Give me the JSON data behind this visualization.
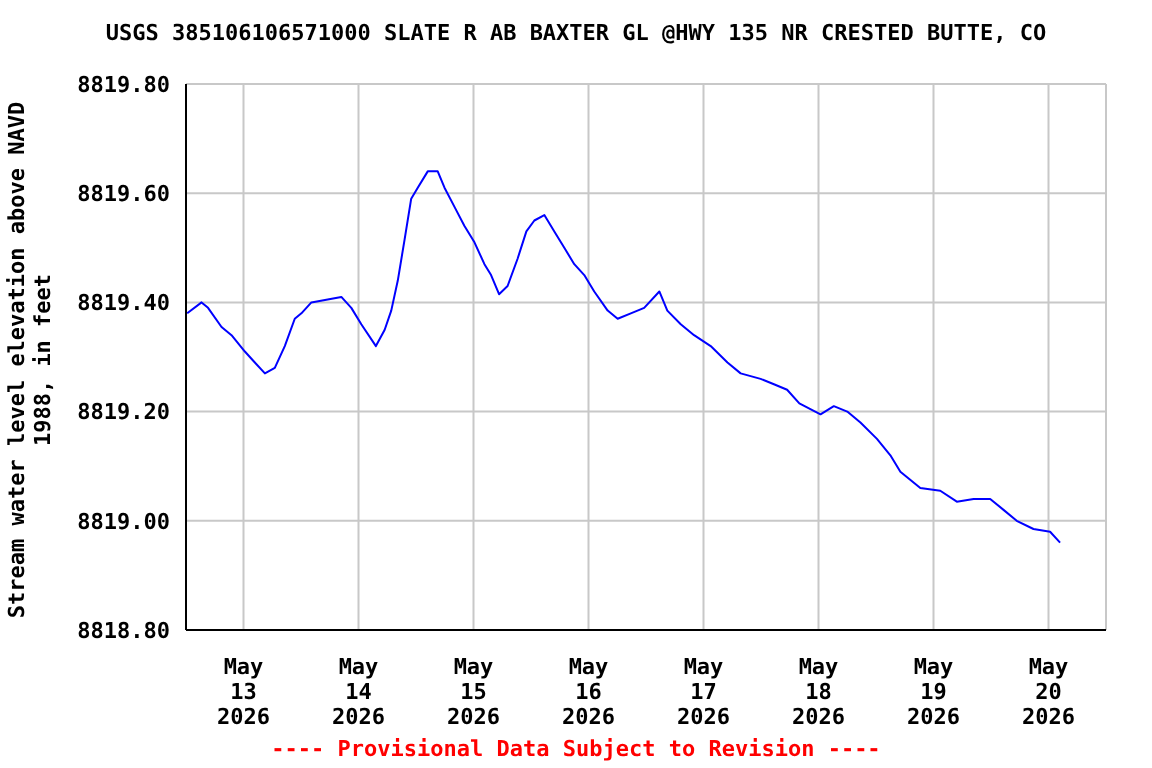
{
  "chart_data": {
    "type": "line",
    "title": "USGS 385106106571000 SLATE R AB BAXTER GL @HWY 135 NR CRESTED BUTTE, CO",
    "ylabel": "Stream water level elevation above NAVD\n1988, in feet",
    "annotations": [
      "---- Provisional Data Subject to Revision ----"
    ],
    "x": [
      "2026-05-12T12:15",
      "2026-05-12T15:15",
      "2026-05-12T16:36",
      "2026-05-12T19:25",
      "2026-05-12T21:30",
      "2026-05-13T00:17",
      "2026-05-13T02:22",
      "2026-05-13T04:28",
      "2026-05-13T06:32",
      "2026-05-13T08:37",
      "2026-05-13T10:42",
      "2026-05-13T12:05",
      "2026-05-13T14:10",
      "2026-05-13T20:25",
      "2026-05-13T22:30",
      "2026-05-14T00:35",
      "2026-05-14T03:38",
      "2026-05-14T05:28",
      "2026-05-14T06:50",
      "2026-05-14T08:12",
      "2026-05-14T09:37",
      "2026-05-14T11:00",
      "2026-05-14T12:22",
      "2026-05-14T14:27",
      "2026-05-14T16:32",
      "2026-05-14T17:57",
      "2026-05-14T20:02",
      "2026-05-14T22:07",
      "2026-05-15T00:12",
      "2026-05-15T02:17",
      "2026-05-15T03:40",
      "2026-05-15T05:20",
      "2026-05-15T07:07",
      "2026-05-15T09:12",
      "2026-05-15T11:02",
      "2026-05-15T12:42",
      "2026-05-15T14:47",
      "2026-05-15T16:52",
      "2026-05-15T18:57",
      "2026-05-15T21:02",
      "2026-05-15T23:07",
      "2026-05-16T01:12",
      "2026-05-16T04:00",
      "2026-05-16T06:05",
      "2026-05-16T08:50",
      "2026-05-16T11:37",
      "2026-05-16T14:47",
      "2026-05-16T16:27",
      "2026-05-16T19:15",
      "2026-05-16T22:02",
      "2026-05-17T01:30",
      "2026-05-17T05:00",
      "2026-05-17T07:45",
      "2026-05-17T11:55",
      "2026-05-17T14:42",
      "2026-05-17T17:27",
      "2026-05-17T20:00",
      "2026-05-18T00:25",
      "2026-05-18T03:12",
      "2026-05-18T06:00",
      "2026-05-18T08:45",
      "2026-05-18T12:12",
      "2026-05-18T15:00",
      "2026-05-18T17:05",
      "2026-05-18T21:15",
      "2026-05-19T01:25",
      "2026-05-19T04:52",
      "2026-05-19T08:22",
      "2026-05-19T11:50",
      "2026-05-19T14:37",
      "2026-05-19T17:22",
      "2026-05-19T20:52",
      "2026-05-20T00:20",
      "2026-05-20T02:25"
    ],
    "series": [
      {
        "color": "#0000ff",
        "values": [
          8819.38,
          8819.4,
          8819.39,
          8819.355,
          8819.34,
          8819.31,
          8819.29,
          8819.27,
          8819.28,
          8819.32,
          8819.37,
          8819.38,
          8819.4,
          8819.41,
          8819.39,
          8819.36,
          8819.32,
          8819.35,
          8819.385,
          8819.44,
          8819.515,
          8819.59,
          8819.61,
          8819.64,
          8819.64,
          8819.61,
          8819.575,
          8819.54,
          8819.51,
          8819.47,
          8819.45,
          8819.415,
          8819.43,
          8819.48,
          8819.53,
          8819.55,
          8819.56,
          8819.53,
          8819.5,
          8819.47,
          8819.45,
          8819.42,
          8819.385,
          8819.37,
          8819.38,
          8819.39,
          8819.42,
          8819.385,
          8819.36,
          8819.34,
          8819.32,
          8819.29,
          8819.27,
          8819.26,
          8819.25,
          8819.24,
          8819.215,
          8819.195,
          8819.21,
          8819.2,
          8819.18,
          8819.15,
          8819.12,
          8819.09,
          8819.06,
          8819.055,
          8819.035,
          8819.04,
          8819.04,
          8819.02,
          8819.0,
          8818.985,
          8818.98,
          8818.96
        ]
      }
    ],
    "xlim": [
      "2026-05-12T12:00",
      "2026-05-20T12:00"
    ],
    "xticks": [
      {
        "value": "2026-05-13",
        "label": "May\n13\n2026"
      },
      {
        "value": "2026-05-14",
        "label": "May\n14\n2026"
      },
      {
        "value": "2026-05-15",
        "label": "May\n15\n2026"
      },
      {
        "value": "2026-05-16",
        "label": "May\n16\n2026"
      },
      {
        "value": "2026-05-17",
        "label": "May\n17\n2026"
      },
      {
        "value": "2026-05-18",
        "label": "May\n18\n2026"
      },
      {
        "value": "2026-05-19",
        "label": "May\n19\n2026"
      },
      {
        "value": "2026-05-20",
        "label": "May\n20\n2026"
      }
    ],
    "ylim": [
      8818.8,
      8819.8
    ],
    "yticks": [
      {
        "value": 8818.8,
        "label": "8818.80"
      },
      {
        "value": 8819.0,
        "label": "8819.00"
      },
      {
        "value": 8819.2,
        "label": "8819.20"
      },
      {
        "value": 8819.4,
        "label": "8819.40"
      },
      {
        "value": 8819.6,
        "label": "8819.60"
      },
      {
        "value": 8819.8,
        "label": "8819.80"
      }
    ],
    "grid": true,
    "legend": false,
    "marker": "none",
    "line_style": "solid"
  }
}
